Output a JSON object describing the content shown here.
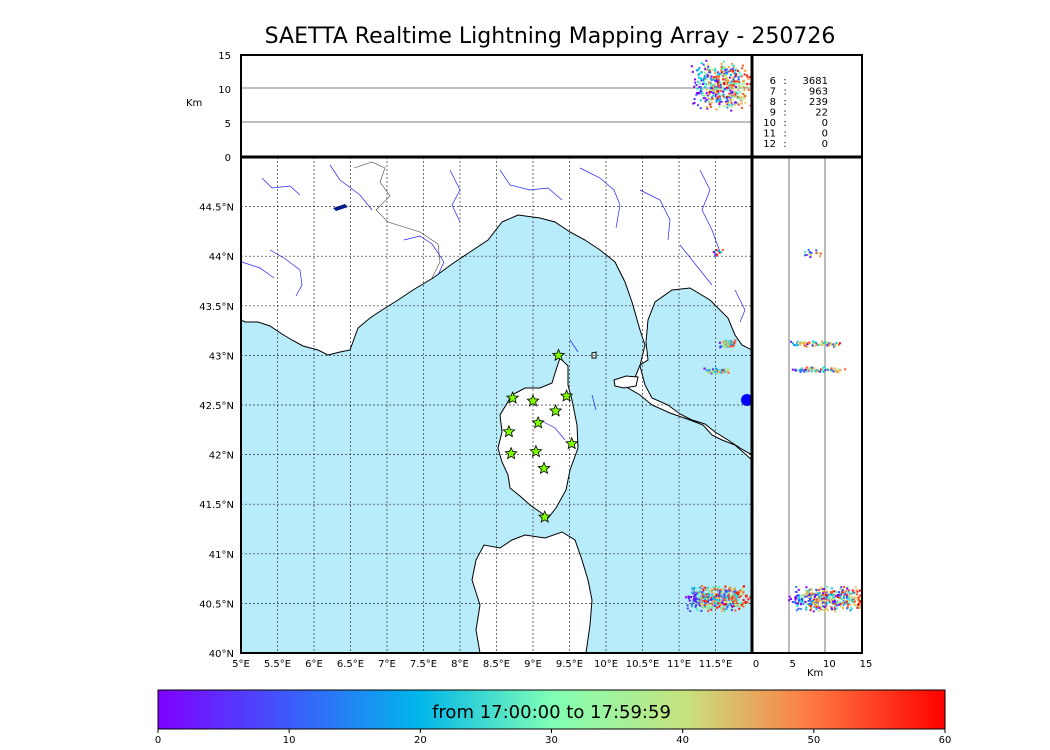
{
  "title": "SAETTA Realtime Lightning Mapping Array - 250726",
  "alt_axis": {
    "unit": "Km",
    "ticks": [
      "0",
      "5",
      "10",
      "15"
    ]
  },
  "lon_axis": {
    "ticks": [
      "5°E",
      "5.5°E",
      "6°E",
      "6.5°E",
      "7°E",
      "7.5°E",
      "8°E",
      "8.5°E",
      "9°E",
      "9.5°E",
      "10°E",
      "10.5°E",
      "11°E",
      "11.5°E"
    ]
  },
  "lat_axis": {
    "ticks": [
      "40°N",
      "40.5°N",
      "41°N",
      "41.5°N",
      "42°N",
      "42.5°N",
      "43°N",
      "43.5°N",
      "44°N",
      "44.5°N"
    ]
  },
  "right_axis": {
    "unit": "Km",
    "ticks": [
      "0",
      "5",
      "10",
      "15"
    ]
  },
  "station_counts": [
    {
      "stations": "6",
      "sep": ":",
      "count": "3681",
      "color": "#ff0000"
    },
    {
      "stations": "7",
      "sep": ":",
      "count": "963",
      "color": "#000000"
    },
    {
      "stations": "8",
      "sep": ":",
      "count": "239",
      "color": "#000000"
    },
    {
      "stations": "9",
      "sep": ":",
      "count": "22",
      "color": "#000000"
    },
    {
      "stations": "10",
      "sep": ":",
      "count": "0",
      "color": "#000000"
    },
    {
      "stations": "11",
      "sep": ":",
      "count": "0",
      "color": "#000000"
    },
    {
      "stations": "12",
      "sep": ":",
      "count": "0",
      "color": "#000000"
    }
  ],
  "colorbar": {
    "label": "from 17:00:00 to 17:59:59",
    "ticks": [
      "0",
      "10",
      "20",
      "30",
      "40",
      "50",
      "60"
    ],
    "colors": [
      "#7f00ff",
      "#2a7ff8",
      "#00d4e2",
      "#7fffb4",
      "#ffd38a",
      "#ff2a15",
      "#ff0000"
    ]
  },
  "map_colors": {
    "sea": "#b8ecfb",
    "land": "#ffffff",
    "rivers": "#0000ff",
    "stations": "#80ff00"
  },
  "stations": [
    {
      "lon": 9.35,
      "lat": 43.0
    },
    {
      "lon": 8.72,
      "lat": 42.57
    },
    {
      "lon": 9.0,
      "lat": 42.54
    },
    {
      "lon": 9.46,
      "lat": 42.59
    },
    {
      "lon": 9.31,
      "lat": 42.44
    },
    {
      "lon": 9.07,
      "lat": 42.32
    },
    {
      "lon": 8.67,
      "lat": 42.23
    },
    {
      "lon": 9.53,
      "lat": 42.11
    },
    {
      "lon": 8.7,
      "lat": 42.01
    },
    {
      "lon": 9.04,
      "lat": 42.03
    },
    {
      "lon": 9.15,
      "lat": 41.86
    },
    {
      "lon": 9.16,
      "lat": 41.37
    }
  ]
}
